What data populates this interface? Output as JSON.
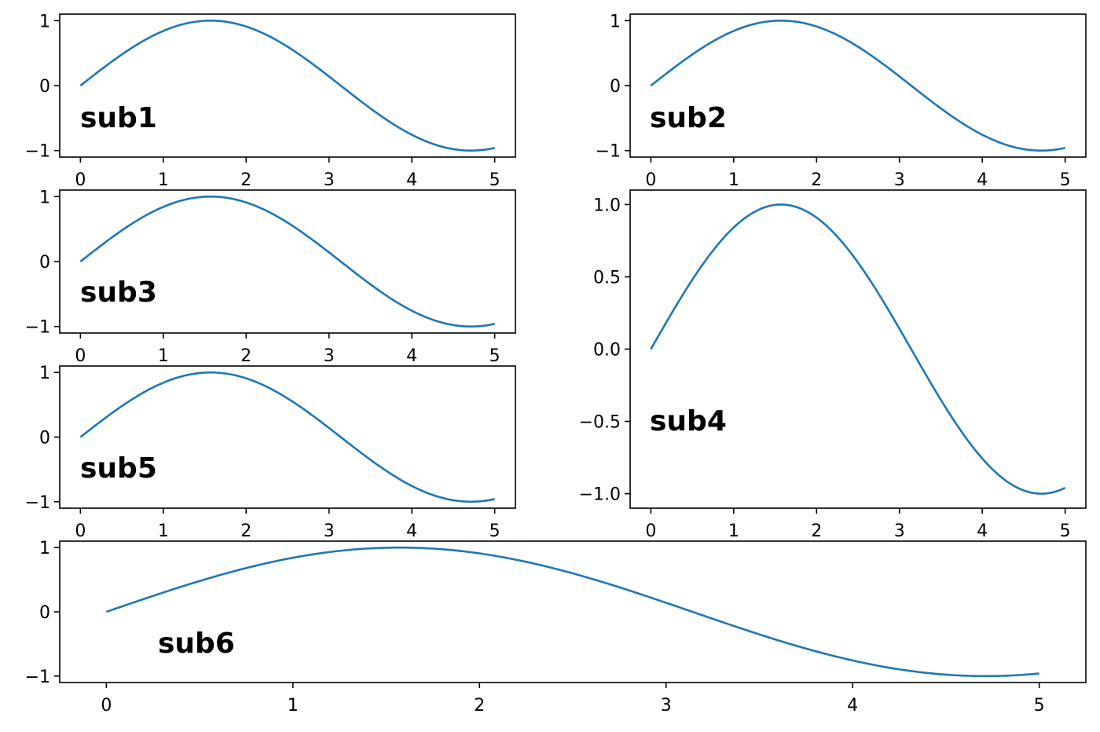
{
  "colors": {
    "line": "#1f77b4",
    "axes": "#000000",
    "background": "#ffffff"
  },
  "chart_data": [
    {
      "type": "line",
      "panel_label": "sub1",
      "xlim": [
        -0.25,
        5.25
      ],
      "ylim": [
        -1.1,
        1.1
      ],
      "xticks": [
        0,
        1,
        2,
        3,
        4,
        5
      ],
      "xtick_labels": [
        "0",
        "1",
        "2",
        "3",
        "4",
        "5"
      ],
      "yticks": [
        -1,
        0,
        1
      ],
      "ytick_labels": [
        "−1",
        "0",
        "1"
      ],
      "grid": false,
      "series": [
        {
          "x": [
            0,
            0.25,
            0.5,
            0.75,
            1,
            1.25,
            1.5,
            1.75,
            2,
            2.25,
            2.5,
            2.75,
            3,
            3.25,
            3.5,
            3.75,
            4,
            4.25,
            4.5,
            4.75,
            5
          ],
          "y": [
            0,
            0.247,
            0.479,
            0.682,
            0.841,
            0.949,
            0.997,
            0.984,
            0.909,
            0.778,
            0.598,
            0.382,
            0.141,
            -0.108,
            -0.351,
            -0.572,
            -0.757,
            -0.895,
            -0.978,
            -0.999,
            -0.959
          ]
        }
      ]
    },
    {
      "type": "line",
      "panel_label": "sub2",
      "xlim": [
        -0.25,
        5.25
      ],
      "ylim": [
        -1.1,
        1.1
      ],
      "xticks": [
        0,
        1,
        2,
        3,
        4,
        5
      ],
      "xtick_labels": [
        "0",
        "1",
        "2",
        "3",
        "4",
        "5"
      ],
      "yticks": [
        -1,
        0,
        1
      ],
      "ytick_labels": [
        "−1",
        "0",
        "1"
      ],
      "grid": false,
      "series": [
        {
          "x": [
            0,
            0.25,
            0.5,
            0.75,
            1,
            1.25,
            1.5,
            1.75,
            2,
            2.25,
            2.5,
            2.75,
            3,
            3.25,
            3.5,
            3.75,
            4,
            4.25,
            4.5,
            4.75,
            5
          ],
          "y": [
            0,
            0.247,
            0.479,
            0.682,
            0.841,
            0.949,
            0.997,
            0.984,
            0.909,
            0.778,
            0.598,
            0.382,
            0.141,
            -0.108,
            -0.351,
            -0.572,
            -0.757,
            -0.895,
            -0.978,
            -0.999,
            -0.959
          ]
        }
      ]
    },
    {
      "type": "line",
      "panel_label": "sub3",
      "xlim": [
        -0.25,
        5.25
      ],
      "ylim": [
        -1.1,
        1.1
      ],
      "xticks": [
        0,
        1,
        2,
        3,
        4,
        5
      ],
      "xtick_labels": [
        "0",
        "1",
        "2",
        "3",
        "4",
        "5"
      ],
      "yticks": [
        -1,
        0,
        1
      ],
      "ytick_labels": [
        "−1",
        "0",
        "1"
      ],
      "grid": false,
      "series": [
        {
          "x": [
            0,
            0.25,
            0.5,
            0.75,
            1,
            1.25,
            1.5,
            1.75,
            2,
            2.25,
            2.5,
            2.75,
            3,
            3.25,
            3.5,
            3.75,
            4,
            4.25,
            4.5,
            4.75,
            5
          ],
          "y": [
            0,
            0.247,
            0.479,
            0.682,
            0.841,
            0.949,
            0.997,
            0.984,
            0.909,
            0.778,
            0.598,
            0.382,
            0.141,
            -0.108,
            -0.351,
            -0.572,
            -0.757,
            -0.895,
            -0.978,
            -0.999,
            -0.959
          ]
        }
      ]
    },
    {
      "type": "line",
      "panel_label": "sub4",
      "xlim": [
        -0.25,
        5.25
      ],
      "ylim": [
        -1.1,
        1.1
      ],
      "xticks": [
        0,
        1,
        2,
        3,
        4,
        5
      ],
      "xtick_labels": [
        "0",
        "1",
        "2",
        "3",
        "4",
        "5"
      ],
      "yticks": [
        -1.0,
        -0.5,
        0.0,
        0.5,
        1.0
      ],
      "ytick_labels": [
        "−1.0",
        "−0.5",
        "0.0",
        "0.5",
        "1.0"
      ],
      "grid": false,
      "series": [
        {
          "x": [
            0,
            0.25,
            0.5,
            0.75,
            1,
            1.25,
            1.5,
            1.75,
            2,
            2.25,
            2.5,
            2.75,
            3,
            3.25,
            3.5,
            3.75,
            4,
            4.25,
            4.5,
            4.75,
            5
          ],
          "y": [
            0,
            0.247,
            0.479,
            0.682,
            0.841,
            0.949,
            0.997,
            0.984,
            0.909,
            0.778,
            0.598,
            0.382,
            0.141,
            -0.108,
            -0.351,
            -0.572,
            -0.757,
            -0.895,
            -0.978,
            -0.999,
            -0.959
          ]
        }
      ]
    },
    {
      "type": "line",
      "panel_label": "sub5",
      "xlim": [
        -0.25,
        5.25
      ],
      "ylim": [
        -1.1,
        1.1
      ],
      "xticks": [
        0,
        1,
        2,
        3,
        4,
        5
      ],
      "xtick_labels": [
        "0",
        "1",
        "2",
        "3",
        "4",
        "5"
      ],
      "yticks": [
        -1,
        0,
        1
      ],
      "ytick_labels": [
        "−1",
        "0",
        "1"
      ],
      "grid": false,
      "series": [
        {
          "x": [
            0,
            0.25,
            0.5,
            0.75,
            1,
            1.25,
            1.5,
            1.75,
            2,
            2.25,
            2.5,
            2.75,
            3,
            3.25,
            3.5,
            3.75,
            4,
            4.25,
            4.5,
            4.75,
            5
          ],
          "y": [
            0,
            0.247,
            0.479,
            0.682,
            0.841,
            0.949,
            0.997,
            0.984,
            0.909,
            0.778,
            0.598,
            0.382,
            0.141,
            -0.108,
            -0.351,
            -0.572,
            -0.757,
            -0.895,
            -0.978,
            -0.999,
            -0.959
          ]
        }
      ]
    },
    {
      "type": "line",
      "panel_label": "sub6",
      "xlim": [
        -0.25,
        5.25
      ],
      "ylim": [
        -1.1,
        1.1
      ],
      "xticks": [
        0,
        1,
        2,
        3,
        4,
        5
      ],
      "xtick_labels": [
        "0",
        "1",
        "2",
        "3",
        "4",
        "5"
      ],
      "yticks": [
        -1,
        0,
        1
      ],
      "ytick_labels": [
        "−1",
        "0",
        "1"
      ],
      "grid": false,
      "series": [
        {
          "x": [
            0,
            0.25,
            0.5,
            0.75,
            1,
            1.25,
            1.5,
            1.75,
            2,
            2.25,
            2.5,
            2.75,
            3,
            3.25,
            3.5,
            3.75,
            4,
            4.25,
            4.5,
            4.75,
            5
          ],
          "y": [
            0,
            0.247,
            0.479,
            0.682,
            0.841,
            0.949,
            0.997,
            0.984,
            0.909,
            0.778,
            0.598,
            0.382,
            0.141,
            -0.108,
            -0.351,
            -0.572,
            -0.757,
            -0.895,
            -0.978,
            -0.999,
            -0.959
          ]
        }
      ]
    }
  ]
}
